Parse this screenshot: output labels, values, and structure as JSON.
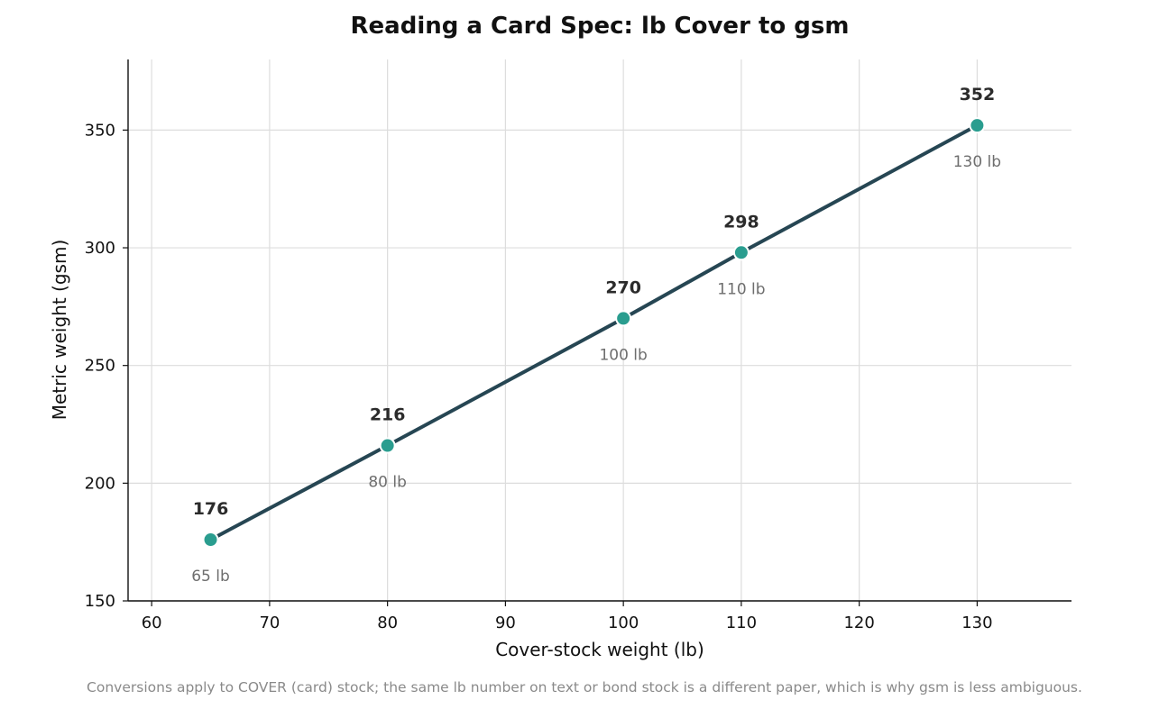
{
  "chart_data": {
    "type": "line",
    "title": "Reading a Card Spec: lb Cover to gsm",
    "xlabel": "Cover-stock weight (lb)",
    "ylabel": "Metric weight (gsm)",
    "x": [
      65,
      80,
      100,
      110,
      130
    ],
    "series": [
      {
        "values": [
          176,
          216,
          270,
          298,
          352
        ],
        "point_labels": [
          "176",
          "216",
          "270",
          "298",
          "352"
        ],
        "point_sublabels": [
          "65 lb",
          "80 lb",
          "100 lb",
          "110 lb",
          "130 lb"
        ]
      }
    ],
    "xlim": [
      58,
      138
    ],
    "ylim": [
      150,
      380
    ],
    "xticks": [
      60,
      70,
      80,
      90,
      100,
      110,
      120,
      130
    ],
    "yticks": [
      150,
      200,
      250,
      300,
      350
    ],
    "grid": true,
    "footnote": "Conversions apply to COVER (card) stock; the same lb number on text or bond stock is a different paper, which is why gsm is less ambiguous.",
    "colors": {
      "line": "#264653",
      "marker": "#2a9d8f",
      "marker_edge": "#ffffff",
      "grid": "#dddddd",
      "axis": "#111111"
    }
  }
}
